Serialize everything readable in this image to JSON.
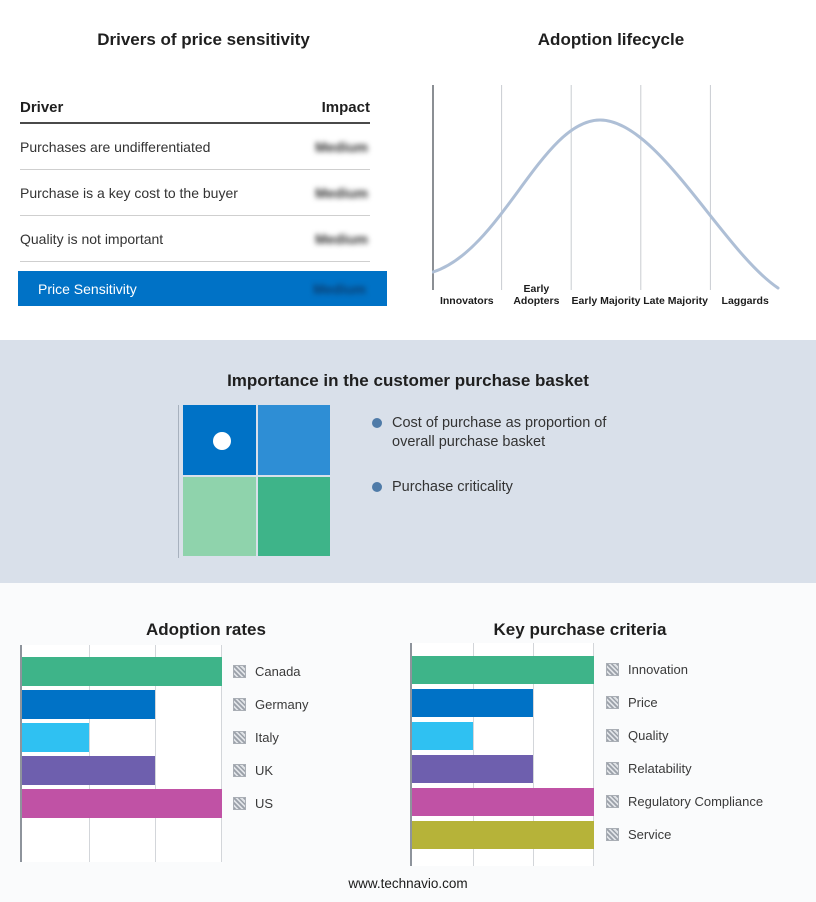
{
  "footer": "www.technavio.com",
  "accent_blue": "#0072c6",
  "drivers": {
    "title": "Drivers of price sensitivity",
    "columns": {
      "driver": "Driver",
      "impact": "Impact"
    },
    "rows": [
      {
        "driver": "Purchases are undifferentiated",
        "impact": "Medium"
      },
      {
        "driver": "Purchase is a key cost to the buyer",
        "impact": "Medium"
      },
      {
        "driver": "Quality is not important",
        "impact": "Medium"
      }
    ],
    "highlight": {
      "label": "Price Sensitivity",
      "impact": "Medium",
      "color": "#0072c6"
    }
  },
  "basket": {
    "title": "Importance in the customer purchase basket",
    "bullets": [
      "Cost of purchase as proportion of overall purchase basket",
      "Purchase criticality"
    ],
    "quadrant_colors": [
      "#0072c6",
      "#2e8ed5",
      "#8fd3ac",
      "#3eb489"
    ]
  },
  "chart_data": [
    {
      "type": "line",
      "title": "Adoption lifecycle",
      "categories": [
        "Innovators",
        "Early Adopters",
        "Early Majority",
        "Late Majority",
        "Laggards"
      ],
      "values": [
        0.25,
        0.7,
        1.0,
        0.7,
        0.2
      ],
      "xlabel": "",
      "ylabel": "",
      "ylim": [
        0,
        1
      ],
      "grid": true,
      "color": "#aebfd6",
      "legend_position": "none"
    },
    {
      "type": "bar",
      "title": "Adoption rates",
      "orientation": "horizontal",
      "categories": [
        "Canada",
        "Germany",
        "Italy",
        "UK",
        "US"
      ],
      "values": [
        3,
        2,
        1,
        2,
        3
      ],
      "xlim": [
        0,
        3
      ],
      "colors": [
        "#3eb489",
        "#0072c6",
        "#2fc1f2",
        "#6e5fae",
        "#c052a5"
      ],
      "grid": true,
      "legend_position": "right"
    },
    {
      "type": "bar",
      "title": "Key purchase criteria",
      "orientation": "horizontal",
      "categories": [
        "Innovation",
        "Price",
        "Quality",
        "Relatability",
        "Regulatory Compliance",
        "Service"
      ],
      "values": [
        3,
        2,
        1,
        2,
        3,
        3
      ],
      "xlim": [
        0,
        3
      ],
      "colors": [
        "#3eb489",
        "#0072c6",
        "#2fc1f2",
        "#6e5fae",
        "#c052a5",
        "#b6b339"
      ],
      "grid": true,
      "legend_position": "right"
    }
  ]
}
